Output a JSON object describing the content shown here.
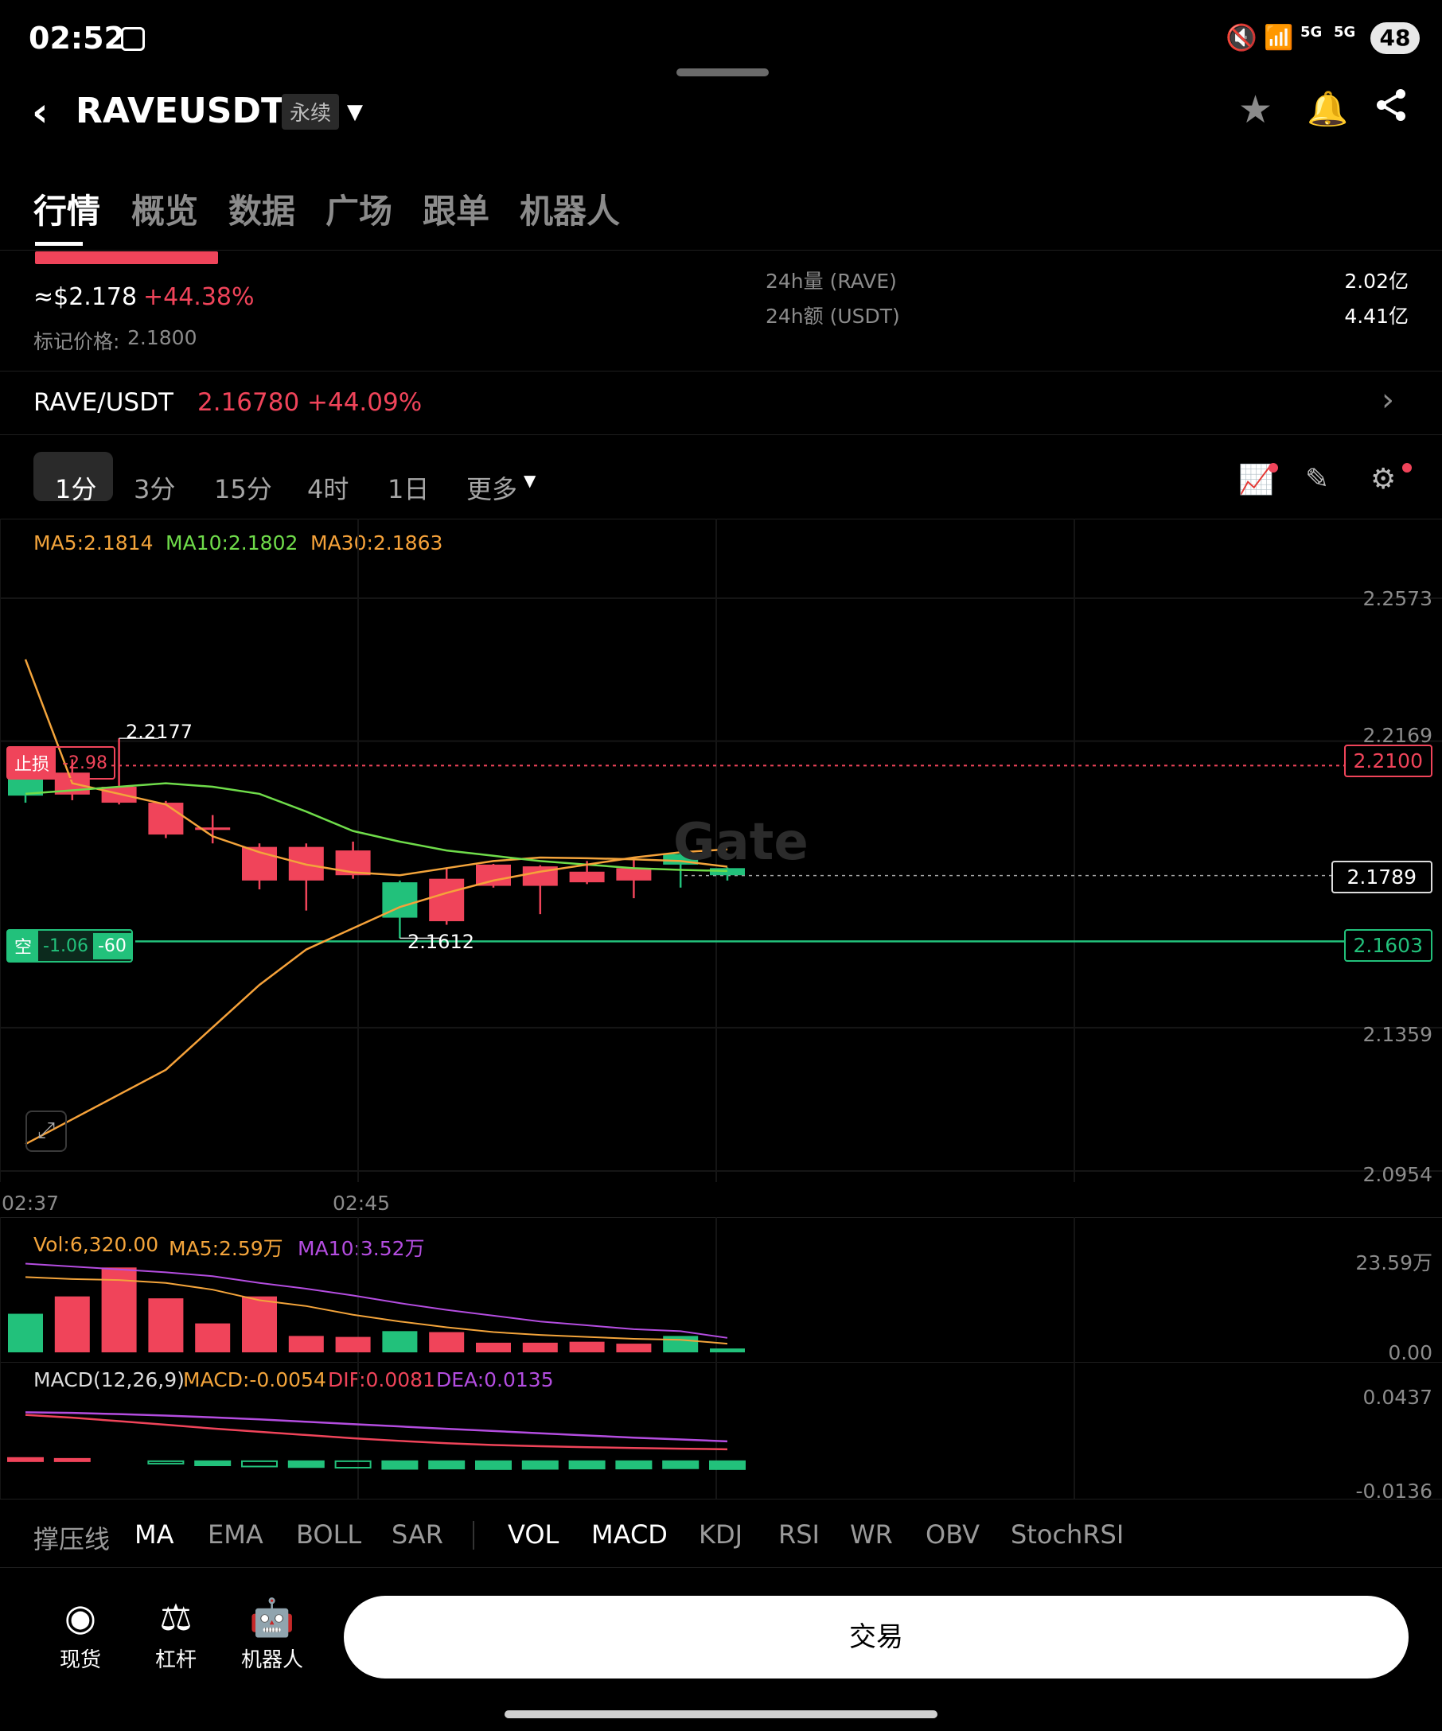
{
  "status_bar": {
    "time": "02:52",
    "battery": "48",
    "net1": "5G",
    "net2": "5G",
    "wifi": "5"
  },
  "header": {
    "symbol": "RAVEUSDT",
    "contract_type": "永续"
  },
  "tabs": [
    "行情",
    "概览",
    "数据",
    "广场",
    "跟单",
    "机器人"
  ],
  "price": {
    "usd": "≈$2.178",
    "change": "+44.38%",
    "mark_label": "标记价格:",
    "mark_value": "2.1800",
    "vol_label": "24h量 (RAVE)",
    "vol_value": "2.02亿",
    "amt_label": "24h额 (USDT)",
    "amt_value": "4.41亿"
  },
  "spot": {
    "pair": "RAVE/USDT",
    "price": "2.16780",
    "change": "+44.09%"
  },
  "timeframes": [
    "1分",
    "3分",
    "15分",
    "4时",
    "1日",
    "更多"
  ],
  "ma_legend": {
    "ma5": "MA5:2.1814",
    "ma10": "MA10:2.1802",
    "ma30": "MA30:2.1863"
  },
  "colors": {
    "up": "#22c17b",
    "down": "#f0445a",
    "ma5": "#f3a43b",
    "ma10": "#6fdc4a",
    "ma30": "#f6a23a",
    "vol_ma10": "#b44de0",
    "bg": "#000000"
  },
  "orders": {
    "stop_loss_label": "止损",
    "stop_loss_pnl": "-2.98",
    "stop_loss_price": "2.2100",
    "short_label": "空",
    "short_pnl": "-1.06",
    "short_qty": "-60",
    "short_price": "2.1603",
    "last_price": "2.1789"
  },
  "annotations": {
    "high": "2.2177",
    "low": "2.1612"
  },
  "watermark": "Gate",
  "chart_data": {
    "type": "candlestick",
    "y_ticks": [
      "2.2573",
      "2.2169",
      "2.1359",
      "2.0954"
    ],
    "ylim": [
      2.0954,
      2.2573
    ],
    "x_ticks": [
      "02:37",
      "02:45"
    ],
    "candles": [
      {
        "o": 2.2015,
        "c": 2.2075,
        "h": 2.2105,
        "l": 2.1995
      },
      {
        "o": 2.208,
        "c": 2.2018,
        "h": 2.2118,
        "l": 2.2002
      },
      {
        "o": 2.204,
        "c": 2.1995,
        "h": 2.2177,
        "l": 2.199
      },
      {
        "o": 2.1995,
        "c": 2.1905,
        "h": 2.2,
        "l": 2.1895
      },
      {
        "o": 2.1925,
        "c": 2.1918,
        "h": 2.196,
        "l": 2.188
      },
      {
        "o": 2.187,
        "c": 2.1775,
        "h": 2.188,
        "l": 2.175
      },
      {
        "o": 2.187,
        "c": 2.1775,
        "h": 2.188,
        "l": 2.169
      },
      {
        "o": 2.186,
        "c": 2.179,
        "h": 2.1885,
        "l": 2.178
      },
      {
        "o": 2.167,
        "c": 2.177,
        "h": 2.1775,
        "l": 2.1612
      },
      {
        "o": 2.178,
        "c": 2.166,
        "h": 2.181,
        "l": 2.165
      },
      {
        "o": 2.182,
        "c": 2.176,
        "h": 2.1822,
        "l": 2.1755
      },
      {
        "o": 2.1815,
        "c": 2.176,
        "h": 2.1818,
        "l": 2.168
      },
      {
        "o": 2.18,
        "c": 2.177,
        "h": 2.183,
        "l": 2.1765
      },
      {
        "o": 2.181,
        "c": 2.1775,
        "h": 2.184,
        "l": 2.1725
      },
      {
        "o": 2.182,
        "c": 2.185,
        "h": 2.1892,
        "l": 2.1755
      },
      {
        "o": 2.179,
        "c": 2.181,
        "h": 2.1812,
        "l": 2.1775
      }
    ],
    "ma5": [
      2.24,
      2.205,
      2.202,
      2.199,
      2.19,
      2.1855,
      2.182,
      2.1798,
      2.179,
      2.181,
      2.183,
      2.184,
      2.1838,
      2.1835,
      2.183,
      2.1814
    ],
    "ma10": [
      2.202,
      2.203,
      2.204,
      2.205,
      2.204,
      2.202,
      2.197,
      2.1915,
      2.1885,
      2.186,
      2.1845,
      2.183,
      2.182,
      2.181,
      2.1805,
      2.1802
    ],
    "ma30": [
      2.103,
      2.11,
      2.117,
      2.124,
      2.136,
      2.148,
      2.158,
      2.164,
      2.17,
      2.174,
      2.1775,
      2.18,
      2.182,
      2.184,
      2.1855,
      2.1863
    ],
    "volume": {
      "legend": {
        "vol": "Vol:6,320.00",
        "ma5": "MA5:2.59万",
        "ma10": "MA10:3.52万"
      },
      "ticks": [
        "23.59万",
        "0.00"
      ],
      "values": [
        4.0,
        5.8,
        8.8,
        5.6,
        3.0,
        5.8,
        1.7,
        1.6,
        2.2,
        2.1,
        1.0,
        1.0,
        1.1,
        0.9,
        1.7,
        0.4
      ],
      "ma5": [
        7.8,
        7.6,
        7.5,
        7.2,
        6.5,
        5.4,
        4.8,
        3.9,
        3.2,
        2.6,
        2.1,
        1.8,
        1.6,
        1.4,
        1.3,
        0.9
      ],
      "ma10": [
        9.2,
        8.9,
        8.6,
        8.3,
        7.9,
        7.2,
        6.6,
        5.9,
        5.1,
        4.4,
        3.8,
        3.2,
        2.8,
        2.4,
        2.2,
        1.5
      ],
      "max": 23.59
    },
    "macd": {
      "legend": {
        "title": "MACD(12,26,9)",
        "macd": "MACD:-0.0054",
        "dif": "DIF:0.0081",
        "dea": "DEA:0.0135"
      },
      "ticks": [
        "0.0437",
        "-0.0136"
      ],
      "ylim": [
        -0.0136,
        0.0437
      ],
      "hist": [
        0.0022,
        0.0016,
        0,
        -0.0012,
        -0.0028,
        -0.0036,
        -0.004,
        -0.0044,
        -0.0052,
        -0.005,
        -0.0054,
        -0.0052,
        -0.005,
        -0.005,
        -0.0048,
        -0.0054
      ],
      "dif": [
        0.0315,
        0.0296,
        0.0272,
        0.0248,
        0.0222,
        0.02,
        0.0178,
        0.0156,
        0.0138,
        0.0122,
        0.011,
        0.0102,
        0.0095,
        0.009,
        0.0085,
        0.0081
      ],
      "dea": [
        0.0332,
        0.0328,
        0.032,
        0.031,
        0.0298,
        0.0284,
        0.0268,
        0.0252,
        0.0236,
        0.022,
        0.0205,
        0.019,
        0.0175,
        0.016,
        0.0148,
        0.0135
      ]
    }
  },
  "indicator_bar": [
    "撑压线",
    "MA",
    "EMA",
    "BOLL",
    "SAR",
    "VOL",
    "MACD",
    "KDJ",
    "RSI",
    "WR",
    "OBV",
    "StochRSI"
  ],
  "bottom_nav": {
    "spot": "现货",
    "margin": "杠杆",
    "bot": "机器人",
    "trade": "交易"
  }
}
